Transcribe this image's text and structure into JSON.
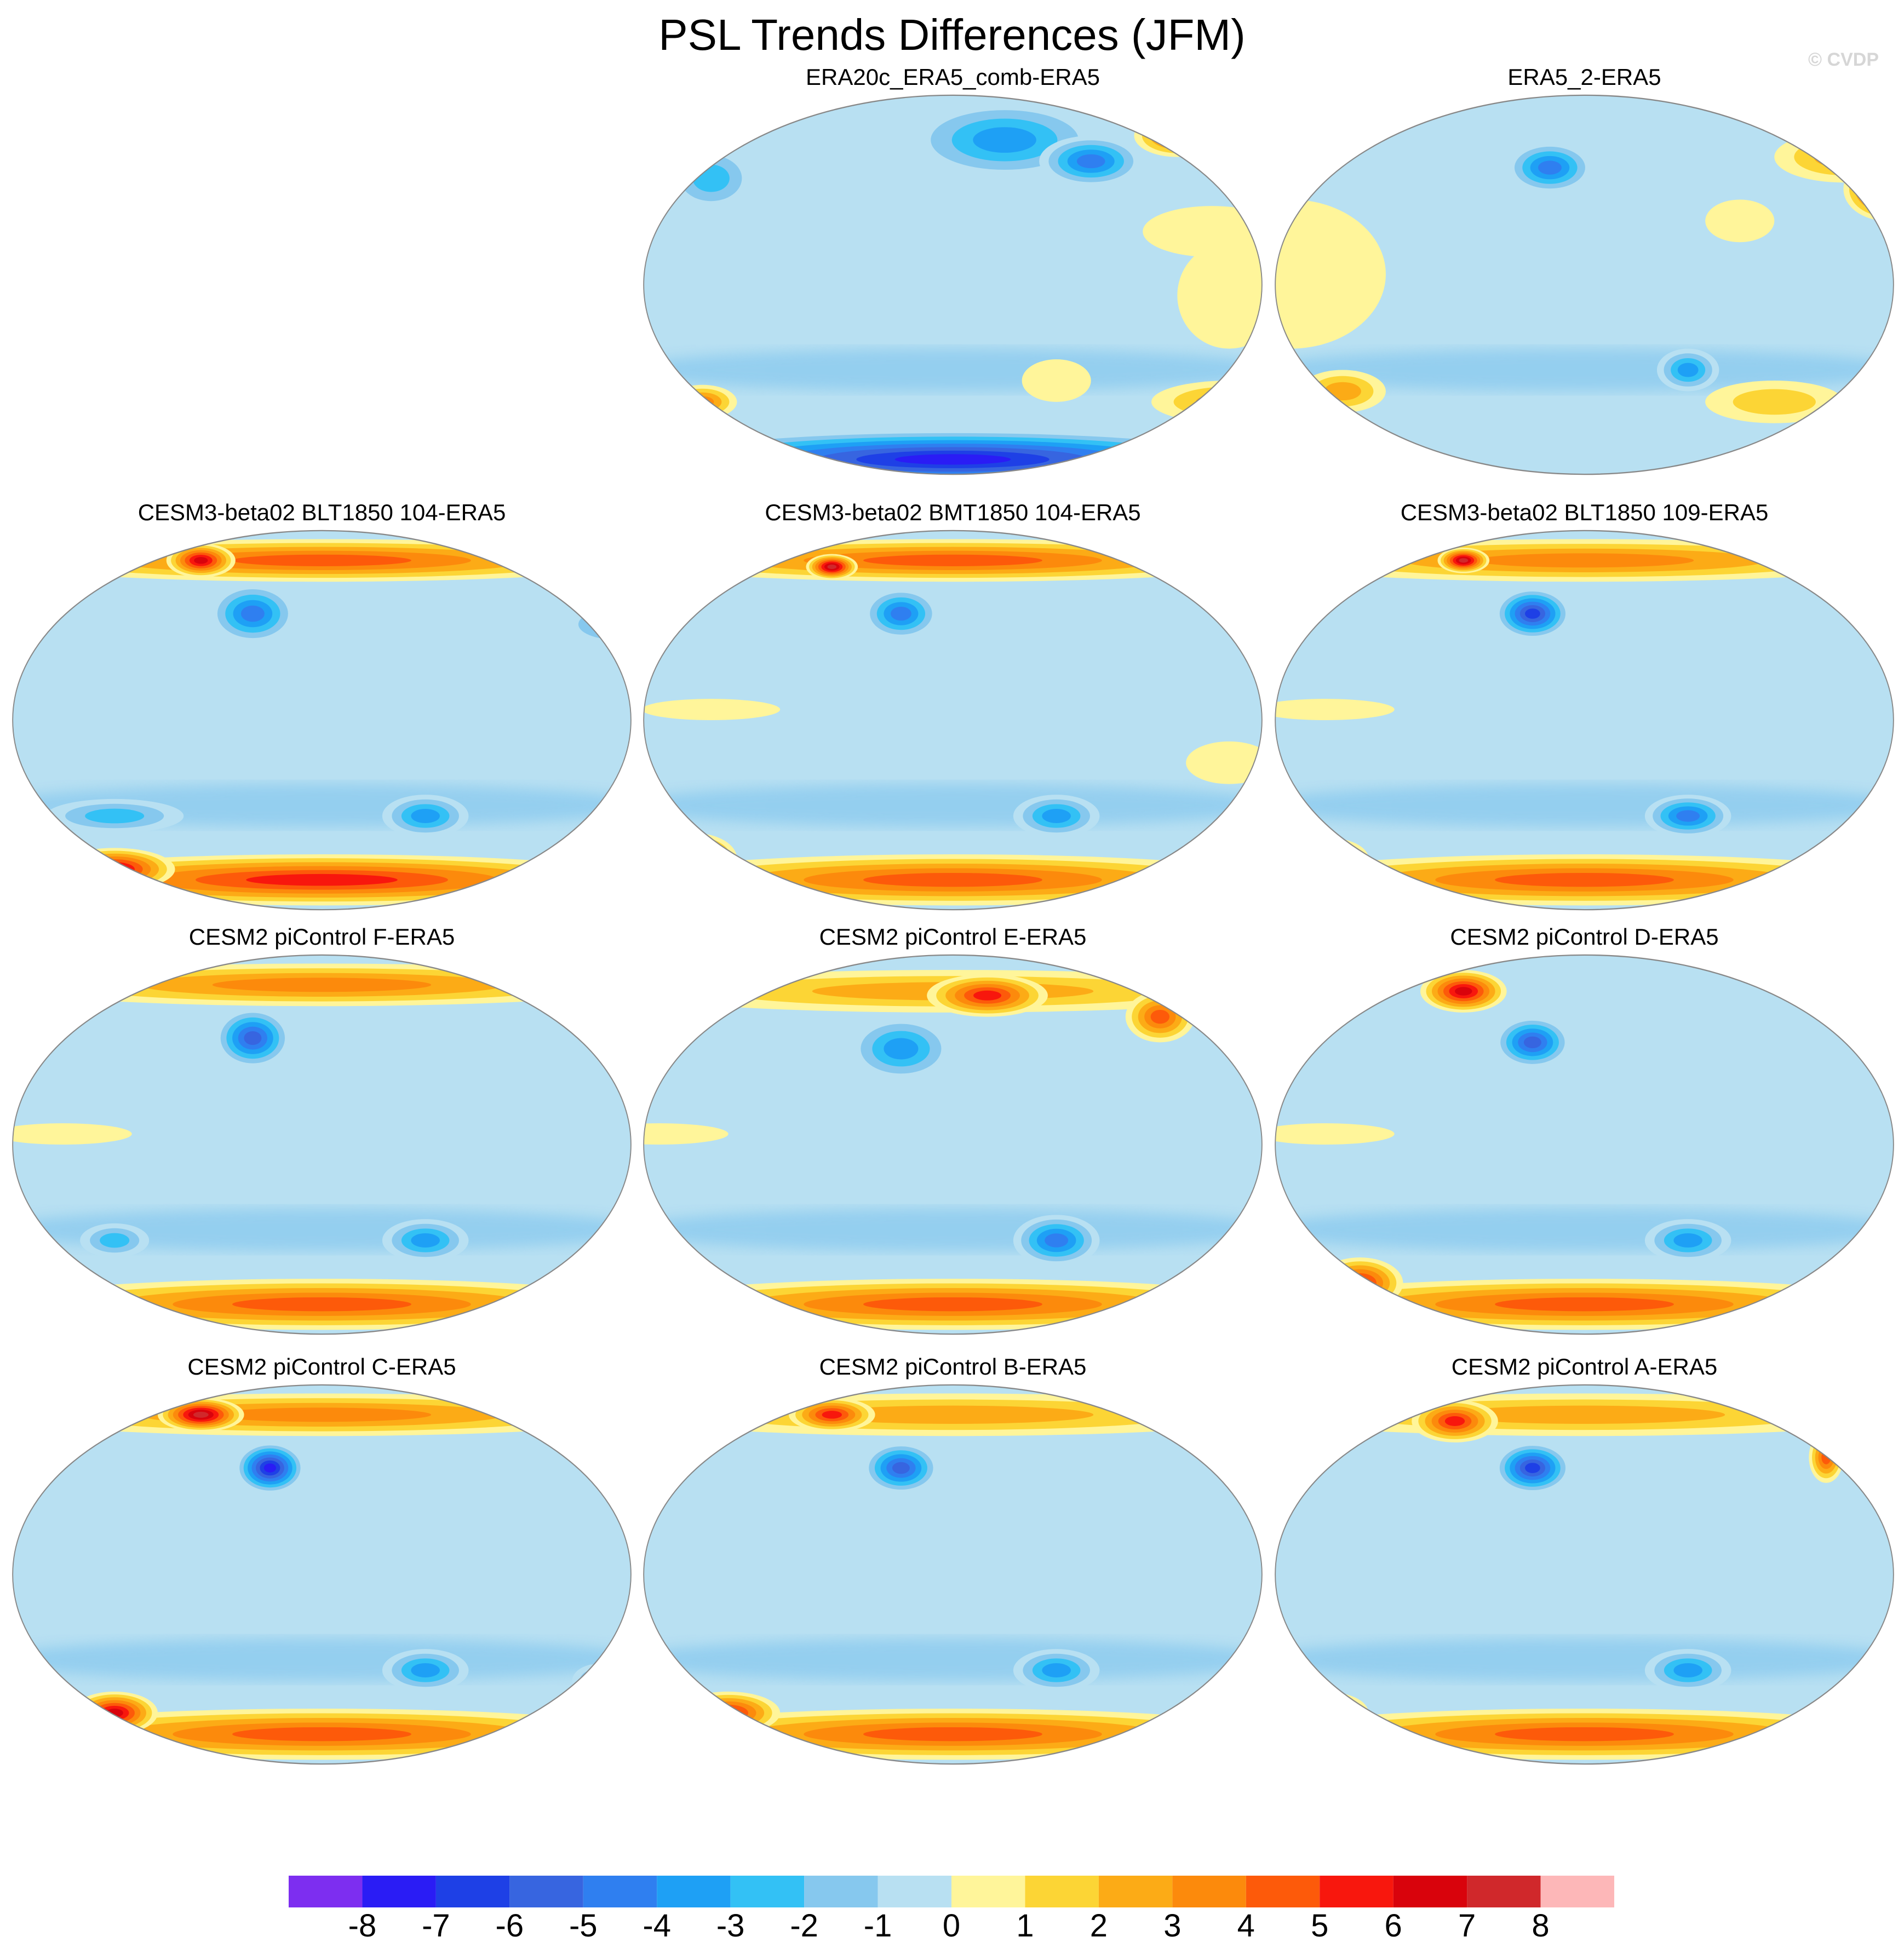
{
  "title": "PSL Trends Differences (JFM)",
  "watermark": "© CVDP",
  "colorbar": {
    "labels": [
      "-8",
      "-7",
      "-6",
      "-5",
      "-4",
      "-3",
      "-2",
      "-1",
      "0",
      "1",
      "2",
      "3",
      "4",
      "5",
      "6",
      "7",
      "8"
    ],
    "colors": [
      "#7d2ef0",
      "#2a1cf5",
      "#1e40e6",
      "#3765e0",
      "#2f7ff0",
      "#1ea0f5",
      "#33c1f5",
      "#86c8ee",
      "#b8e0f2",
      "#fff59a",
      "#fcd535",
      "#fcab16",
      "#fc8a0c",
      "#fd5a0a",
      "#f8170d",
      "#d9030c",
      "#d0282b",
      "#fdb7b8"
    ]
  },
  "panels": [
    {
      "title": "ERA20c_ERA5_comb-ERA5",
      "row": 0,
      "col": 1,
      "anomalies": [
        {
          "lon": 0,
          "lat": -82,
          "value": -8,
          "rx": 190,
          "ry": 14
        },
        {
          "lon": 30,
          "lat": 68,
          "value": -4,
          "rx": 55,
          "ry": 18
        },
        {
          "lon": 80,
          "lat": 58,
          "value": -5,
          "rx": 30,
          "ry": 12
        },
        {
          "lon": -140,
          "lat": 50,
          "value": -3,
          "rx": 25,
          "ry": 15
        },
        {
          "lon": 130,
          "lat": 70,
          "value": 5,
          "rx": 25,
          "ry": 10
        },
        {
          "lon": 150,
          "lat": 25,
          "value": 1,
          "rx": 40,
          "ry": 12
        },
        {
          "lon": 160,
          "lat": -5,
          "value": 1,
          "rx": 30,
          "ry": 25
        },
        {
          "lon": 60,
          "lat": -45,
          "value": 1,
          "rx": 20,
          "ry": 10
        },
        {
          "lon": 160,
          "lat": -55,
          "value": 3,
          "rx": 45,
          "ry": 10
        },
        {
          "lon": -145,
          "lat": -55,
          "value": 4,
          "rx": 20,
          "ry": 8
        }
      ]
    },
    {
      "title": "ERA5_2-ERA5",
      "row": 0,
      "col": 2,
      "anomalies": [
        {
          "lon": 175,
          "lat": 45,
          "value": 7,
          "rx": 25,
          "ry": 15
        },
        {
          "lon": 150,
          "lat": 60,
          "value": 3,
          "rx": 40,
          "ry": 12
        },
        {
          "lon": -20,
          "lat": 55,
          "value": -5,
          "rx": 25,
          "ry": 12
        },
        {
          "lon": -155,
          "lat": 65,
          "value": 6,
          "rx": 20,
          "ry": 10
        },
        {
          "lon": -170,
          "lat": 5,
          "value": 1,
          "rx": 55,
          "ry": 35
        },
        {
          "lon": 60,
          "lat": -40,
          "value": -4,
          "rx": 18,
          "ry": 10
        },
        {
          "lon": -140,
          "lat": -50,
          "value": 3,
          "rx": 25,
          "ry": 10
        },
        {
          "lon": 110,
          "lat": -55,
          "value": 2,
          "rx": 40,
          "ry": 10
        },
        {
          "lon": 90,
          "lat": 30,
          "value": 1,
          "rx": 20,
          "ry": 10
        }
      ]
    },
    {
      "title": "CESM3-beta02 BLT1850 104-ERA5",
      "row": 1,
      "col": 0,
      "anomalies": [
        {
          "lon": 0,
          "lat": -75,
          "value": 6,
          "rx": 190,
          "ry": 12
        },
        {
          "lon": -120,
          "lat": -70,
          "value": 7,
          "rx": 35,
          "ry": 10
        },
        {
          "lon": 0,
          "lat": 75,
          "value": 5,
          "rx": 190,
          "ry": 10
        },
        {
          "lon": -70,
          "lat": 75,
          "value": 7,
          "rx": 20,
          "ry": 8
        },
        {
          "lon": -40,
          "lat": 50,
          "value": -5,
          "rx": 25,
          "ry": 14
        },
        {
          "lon": 60,
          "lat": -45,
          "value": -4,
          "rx": 25,
          "ry": 10
        },
        {
          "lon": -120,
          "lat": -45,
          "value": -3,
          "rx": 40,
          "ry": 8
        },
        {
          "lon": 170,
          "lat": 45,
          "value": -3,
          "rx": 30,
          "ry": 10
        }
      ]
    },
    {
      "title": "CESM3-beta02 BMT1850 104-ERA5",
      "row": 1,
      "col": 1,
      "anomalies": [
        {
          "lon": 0,
          "lat": -75,
          "value": 5,
          "rx": 190,
          "ry": 12
        },
        {
          "lon": -150,
          "lat": -65,
          "value": 7,
          "rx": 25,
          "ry": 12
        },
        {
          "lon": 0,
          "lat": 75,
          "value": 5,
          "rx": 190,
          "ry": 10
        },
        {
          "lon": -70,
          "lat": 72,
          "value": 8,
          "rx": 15,
          "ry": 6
        },
        {
          "lon": -30,
          "lat": 50,
          "value": -5,
          "rx": 22,
          "ry": 12
        },
        {
          "lon": 60,
          "lat": -45,
          "value": -4,
          "rx": 25,
          "ry": 10
        },
        {
          "lon": 160,
          "lat": -20,
          "value": 1,
          "rx": 25,
          "ry": 10
        },
        {
          "lon": -140,
          "lat": 5,
          "value": 1,
          "rx": 40,
          "ry": 5
        }
      ]
    },
    {
      "title": "CESM3-beta02 BLT1850 109-ERA5",
      "row": 1,
      "col": 2,
      "anomalies": [
        {
          "lon": 0,
          "lat": -75,
          "value": 5,
          "rx": 190,
          "ry": 12
        },
        {
          "lon": -150,
          "lat": -65,
          "value": 6,
          "rx": 25,
          "ry": 10
        },
        {
          "lon": 0,
          "lat": 75,
          "value": 4,
          "rx": 190,
          "ry": 10
        },
        {
          "lon": -70,
          "lat": 75,
          "value": 8,
          "rx": 15,
          "ry": 6
        },
        {
          "lon": -30,
          "lat": 50,
          "value": -7,
          "rx": 22,
          "ry": 12
        },
        {
          "lon": 60,
          "lat": -45,
          "value": -5,
          "rx": 25,
          "ry": 10
        },
        {
          "lon": -150,
          "lat": 5,
          "value": 1,
          "rx": 40,
          "ry": 5
        }
      ]
    },
    {
      "title": "CESM2 piControl F-ERA5",
      "row": 2,
      "col": 0,
      "anomalies": [
        {
          "lon": 0,
          "lat": -75,
          "value": 5,
          "rx": 190,
          "ry": 12
        },
        {
          "lon": 0,
          "lat": 75,
          "value": 4,
          "rx": 190,
          "ry": 10
        },
        {
          "lon": -40,
          "lat": 50,
          "value": -6,
          "rx": 22,
          "ry": 14
        },
        {
          "lon": 60,
          "lat": -45,
          "value": -4,
          "rx": 25,
          "ry": 10
        },
        {
          "lon": 160,
          "lat": -55,
          "value": -4,
          "rx": 15,
          "ry": 8
        },
        {
          "lon": -120,
          "lat": -45,
          "value": -3,
          "rx": 20,
          "ry": 8
        },
        {
          "lon": -150,
          "lat": 5,
          "value": 1,
          "rx": 40,
          "ry": 5
        }
      ]
    },
    {
      "title": "CESM2 piControl E-ERA5",
      "row": 2,
      "col": 1,
      "anomalies": [
        {
          "lon": 0,
          "lat": -75,
          "value": 5,
          "rx": 190,
          "ry": 12
        },
        {
          "lon": 0,
          "lat": 72,
          "value": 3,
          "rx": 190,
          "ry": 10
        },
        {
          "lon": 20,
          "lat": 70,
          "value": 6,
          "rx": 35,
          "ry": 10
        },
        {
          "lon": 120,
          "lat": 60,
          "value": 5,
          "rx": 20,
          "ry": 12
        },
        {
          "lon": -30,
          "lat": 45,
          "value": -4,
          "rx": 30,
          "ry": 15
        },
        {
          "lon": 60,
          "lat": -45,
          "value": -5,
          "rx": 25,
          "ry": 12
        },
        {
          "lon": -170,
          "lat": 5,
          "value": 1,
          "rx": 40,
          "ry": 5
        }
      ]
    },
    {
      "title": "CESM2 piControl D-ERA5",
      "row": 2,
      "col": 2,
      "anomalies": [
        {
          "lon": 0,
          "lat": -75,
          "value": 5,
          "rx": 190,
          "ry": 12
        },
        {
          "lon": -130,
          "lat": -65,
          "value": 6,
          "rx": 25,
          "ry": 12
        },
        {
          "lon": -70,
          "lat": 72,
          "value": 7,
          "rx": 25,
          "ry": 10
        },
        {
          "lon": -30,
          "lat": 48,
          "value": -6,
          "rx": 22,
          "ry": 12
        },
        {
          "lon": 60,
          "lat": -45,
          "value": -4,
          "rx": 25,
          "ry": 10
        },
        {
          "lon": -150,
          "lat": 5,
          "value": 1,
          "rx": 40,
          "ry": 5
        }
      ]
    },
    {
      "title": "CESM2 piControl C-ERA5",
      "row": 3,
      "col": 0,
      "anomalies": [
        {
          "lon": 0,
          "lat": -75,
          "value": 5,
          "rx": 190,
          "ry": 12
        },
        {
          "lon": -120,
          "lat": -65,
          "value": 7,
          "rx": 25,
          "ry": 10
        },
        {
          "lon": 0,
          "lat": 75,
          "value": 4,
          "rx": 190,
          "ry": 10
        },
        {
          "lon": -70,
          "lat": 75,
          "value": 8,
          "rx": 25,
          "ry": 8
        },
        {
          "lon": -30,
          "lat": 50,
          "value": -8,
          "rx": 20,
          "ry": 12
        },
        {
          "lon": 60,
          "lat": -45,
          "value": -4,
          "rx": 25,
          "ry": 10
        },
        {
          "lon": 160,
          "lat": -50,
          "value": -3,
          "rx": 15,
          "ry": 8
        }
      ]
    },
    {
      "title": "CESM2 piControl B-ERA5",
      "row": 3,
      "col": 1,
      "anomalies": [
        {
          "lon": 0,
          "lat": -75,
          "value": 5,
          "rx": 190,
          "ry": 12
        },
        {
          "lon": -130,
          "lat": -65,
          "value": 6,
          "rx": 30,
          "ry": 10
        },
        {
          "lon": 0,
          "lat": 75,
          "value": 3,
          "rx": 190,
          "ry": 10
        },
        {
          "lon": -70,
          "lat": 75,
          "value": 6,
          "rx": 25,
          "ry": 8
        },
        {
          "lon": -30,
          "lat": 50,
          "value": -6,
          "rx": 22,
          "ry": 12
        },
        {
          "lon": 60,
          "lat": -45,
          "value": -4,
          "rx": 25,
          "ry": 10
        },
        {
          "lon": 170,
          "lat": 45,
          "value": -3,
          "rx": 20,
          "ry": 8
        }
      ]
    },
    {
      "title": "CESM2 piControl A-ERA5",
      "row": 3,
      "col": 2,
      "anomalies": [
        {
          "lon": 0,
          "lat": -75,
          "value": 5,
          "rx": 190,
          "ry": 12
        },
        {
          "lon": -150,
          "lat": -65,
          "value": 6,
          "rx": 25,
          "ry": 10
        },
        {
          "lon": 0,
          "lat": 75,
          "value": 3,
          "rx": 190,
          "ry": 10
        },
        {
          "lon": -75,
          "lat": 72,
          "value": 6,
          "rx": 25,
          "ry": 10
        },
        {
          "lon": 140,
          "lat": 55,
          "value": 5,
          "rx": 10,
          "ry": 12
        },
        {
          "lon": -30,
          "lat": 50,
          "value": -7,
          "rx": 22,
          "ry": 12
        },
        {
          "lon": 60,
          "lat": -45,
          "value": -4,
          "rx": 25,
          "ry": 10
        },
        {
          "lon": 170,
          "lat": -50,
          "value": -3,
          "rx": 15,
          "ry": 8
        }
      ]
    }
  ]
}
